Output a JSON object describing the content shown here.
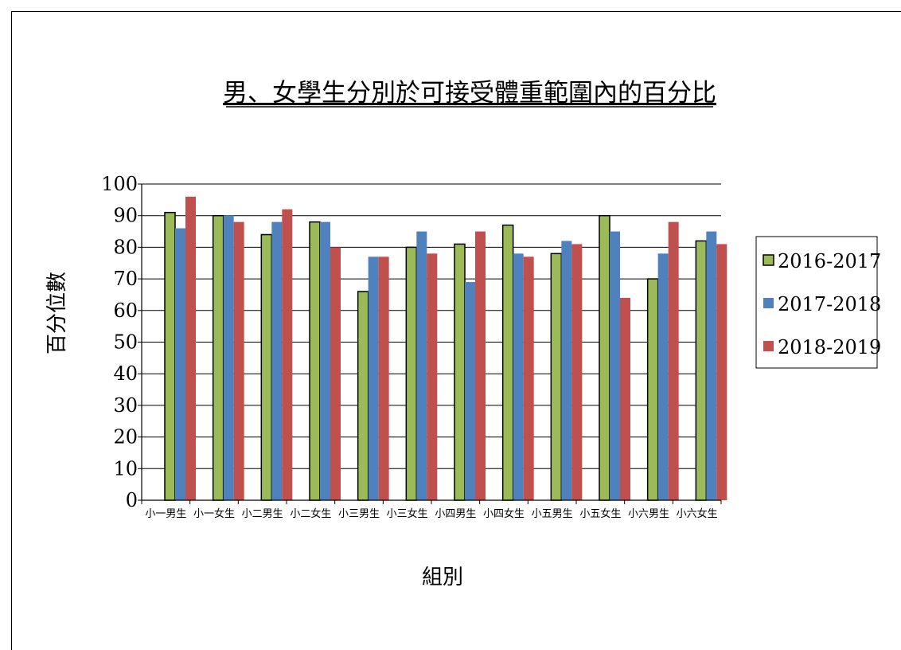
{
  "chart_data": {
    "type": "bar",
    "title": "男、女學生分別於可接受體重範圍內的百分比",
    "xlabel": "組別",
    "ylabel": "百分位數",
    "ylim": [
      0,
      100
    ],
    "yticks": [
      0,
      10,
      20,
      30,
      40,
      50,
      60,
      70,
      80,
      90,
      100
    ],
    "grid": true,
    "legend_position": "right",
    "categories": [
      "小一男生",
      "小一女生",
      "小二男生",
      "小二女生",
      "小三男生",
      "小三女生",
      "小四男生",
      "小四女生",
      "小五男生",
      "小五女生",
      "小六男生",
      "小六女生"
    ],
    "series": [
      {
        "name": "2016-2017",
        "color": "#9bbb59",
        "values": [
          91,
          90,
          84,
          88,
          66,
          80,
          81,
          87,
          78,
          90,
          70,
          82
        ]
      },
      {
        "name": "2017-2018",
        "color": "#4f81bd",
        "values": [
          86,
          90,
          88,
          88,
          77,
          85,
          69,
          78,
          82,
          85,
          78,
          85
        ]
      },
      {
        "name": "2018-2019",
        "color": "#c0504d",
        "values": [
          96,
          88,
          92,
          80,
          77,
          78,
          85,
          77,
          81,
          64,
          88,
          81
        ]
      }
    ]
  }
}
